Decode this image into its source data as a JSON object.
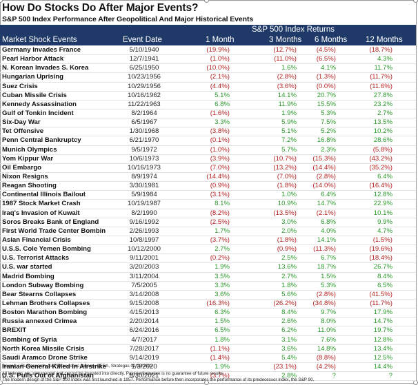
{
  "title": "How Do Stocks Do After Major Events?",
  "subtitle": "S&P 500 Index Performance After Geopolitical And Major Historical Events",
  "header": {
    "group": "S&P 500 Index Returns",
    "columns": [
      "Market Shock Events",
      "Event Date",
      "1 Month",
      "3 Months",
      "6 Months",
      "12 Months"
    ]
  },
  "rows": [
    [
      "Germany Invades France",
      "5/10/1940",
      "(19.9%)",
      "(12.7%)",
      "(4.5%)",
      "(18.7%)"
    ],
    [
      "Pearl Harbor Attack",
      "12/7/1941",
      "(1.0%)",
      "(11.0%)",
      "(6.5%)",
      "4.3%"
    ],
    [
      "N. Korean Invades S. Korea",
      "6/25/1950",
      "(10.0%)",
      "1.6%",
      "4.1%",
      "11.7%"
    ],
    [
      "Hungarian Uprising",
      "10/23/1956",
      "(2.1%)",
      "(2.8%)",
      "(1.3%)",
      "(11.7%)"
    ],
    [
      "Suez Crisis",
      "10/29/1956",
      "(4.4%)",
      "(3.6%)",
      "(0.0%)",
      "(11.6%)"
    ],
    [
      "Cuban Missile Crisis",
      "10/16/1962",
      "5.1%",
      "14.1%",
      "20.7%",
      "27.8%"
    ],
    [
      "Kennedy Assassination",
      "11/22/1963",
      "6.8%",
      "11.9%",
      "15.5%",
      "23.2%"
    ],
    [
      "Gulf of Tonkin Incident",
      "8/2/1964",
      "(1.6%)",
      "1.9%",
      "5.3%",
      "2.7%"
    ],
    [
      "Six-Day War",
      "6/5/1967",
      "3.3%",
      "5.9%",
      "7.5%",
      "13.5%"
    ],
    [
      "Tet Offensive",
      "1/30/1968",
      "(3.8%)",
      "5.1%",
      "5.2%",
      "10.2%"
    ],
    [
      "Penn Central Bankruptcy",
      "6/21/1970",
      "(0.1%)",
      "7.2%",
      "16.8%",
      "28.6%"
    ],
    [
      "Munich Olympics",
      "9/5/1972",
      "(1.0%)",
      "5.7%",
      "2.3%",
      "(5.8%)"
    ],
    [
      "Yom Kippur War",
      "10/6/1973",
      "(3.9%)",
      "(10.7%)",
      "(15.3%)",
      "(43.2%)"
    ],
    [
      "Oil Embargo",
      "10/16/1973",
      "(7.0%)",
      "(13.2%)",
      "(14.4%)",
      "(35.2%)"
    ],
    [
      "Nixon Resigns",
      "8/9/1974",
      "(14.4%)",
      "(7.0%)",
      "(2.8%)",
      "6.4%"
    ],
    [
      "Reagan Shooting",
      "3/30/1981",
      "(0.9%)",
      "(1.8%)",
      "(14.0%)",
      "(16.4%)"
    ],
    [
      "Continental Illinois Bailout",
      "5/9/1984",
      "(3.1%)",
      "1.0%",
      "6.4%",
      "12.8%"
    ],
    [
      "1987 Stock Market Crash",
      "10/19/1987",
      "8.1%",
      "10.9%",
      "14.7%",
      "22.9%"
    ],
    [
      "Iraq's Invasion of Kuwait",
      "8/2/1990",
      "(8.2%)",
      "(13.5%)",
      "(2.1%)",
      "10.1%"
    ],
    [
      "Soros Breaks Bank of England",
      "9/16/1992",
      "(2.5%)",
      "3.0%",
      "6.8%",
      "9.9%"
    ],
    [
      "First World Trade Center Bombin",
      "2/26/1993",
      "1.7%",
      "2.0%",
      "4.0%",
      "4.7%"
    ],
    [
      "Asian Financial Crisis",
      "10/8/1997",
      "(3.7%)",
      "(1.8%)",
      "14.1%",
      "(1.5%)"
    ],
    [
      "U.S.S. Cole Yemen Bombing",
      "10/12/2000",
      "2.7%",
      "(0.9%)",
      "(11.3%)",
      "(19.6%)"
    ],
    [
      "U.S. Terrorist Attacks",
      "9/11/2001",
      "(0.2%)",
      "2.5%",
      "6.7%",
      "(18.4%)"
    ],
    [
      "U.S. war started",
      "3/20/2003",
      "1.9%",
      "13.6%",
      "18.7%",
      "26.7%"
    ],
    [
      "Madrid Bombing",
      "3/11/2004",
      "3.5%",
      "2.7%",
      "1.5%",
      "8.4%"
    ],
    [
      "London Subway Bombing",
      "7/5/2005",
      "3.3%",
      "1.8%",
      "5.3%",
      "6.5%"
    ],
    [
      "Bear Stearns Collapses",
      "3/14/2008",
      "3.6%",
      "5.6%",
      "(2.8%)",
      "(41.5%)"
    ],
    [
      "Lehman Brothers Collapses",
      "9/15/2008",
      "(16.3%)",
      "(26.2%)",
      "(34.8%)",
      "(11.7%)"
    ],
    [
      "Boston Marathon Bombing",
      "4/15/2013",
      "6.3%",
      "8.4%",
      "9.7%",
      "17.9%"
    ],
    [
      "Russia annexed Crimea",
      "2/20/2014",
      "1.5%",
      "2.6%",
      "8.0%",
      "14.7%"
    ],
    [
      "BREXIT",
      "6/24/2016",
      "6.5%",
      "6.2%",
      "11.0%",
      "19.7%"
    ],
    [
      "Bombing of Syria",
      "4/7/2017",
      "1.8%",
      "3.1%",
      "7.6%",
      "12.8%"
    ],
    [
      "North Korea Missile Crisis",
      "7/28/2017",
      "(1.1%)",
      "3.6%",
      "14.8%",
      "13.4%"
    ],
    [
      "Saudi Aramco Drone Strike",
      "9/14/2019",
      "(1.4%)",
      "5.4%",
      "(8.8%)",
      "12.5%"
    ],
    [
      "Iranian General Killed In Airstrike",
      "1/3/2020",
      "1.9%",
      "(23.1%)",
      "(4.2%)",
      "14.4%"
    ],
    [
      "U.S. Pulls Out of Afghanistan",
      "8/30/2021",
      "(3.7%)",
      "2.8%",
      "?",
      "?"
    ]
  ],
  "footnotes": [
    "Source: LPL Research, S&P Dow Jones Indices, CFRA, Strategas 02/22/2022",
    "All indexes are unmanaged and cannot be invested into directly.  Past performance is no guarantee of future results.",
    "The modern design of the S&P 500 Index was first launched in 1957. Performance before then incorporates the performance of its predecessor index, the S&P 90."
  ],
  "colors": {
    "header_bg": "#1f3a68",
    "negative": "#b51f1f",
    "positive": "#2a9a2a"
  }
}
